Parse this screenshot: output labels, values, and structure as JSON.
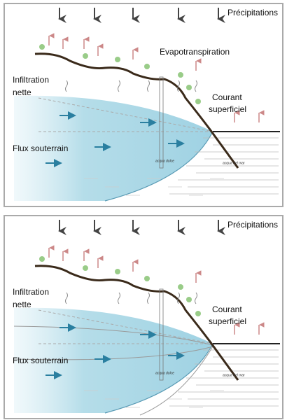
{
  "panels": [
    {
      "precipitation": "Précipitations",
      "evapotranspiration": "Evapotranspiration",
      "infiltration": [
        "Infiltration",
        "nette"
      ],
      "courant": [
        "Courant",
        "superficiel"
      ],
      "flux": "Flux souterrain",
      "fresh_water": "acqua dolce",
      "sea_water": "acqua del mar"
    },
    {
      "precipitation": "Précipitations",
      "infiltration": [
        "Infiltration",
        "nette"
      ],
      "courant": [
        "Courant",
        "superficiel"
      ],
      "flux": "Flux souterrain",
      "fresh_water": "acqua dolce",
      "sea_water": "acqua del mar"
    }
  ]
}
